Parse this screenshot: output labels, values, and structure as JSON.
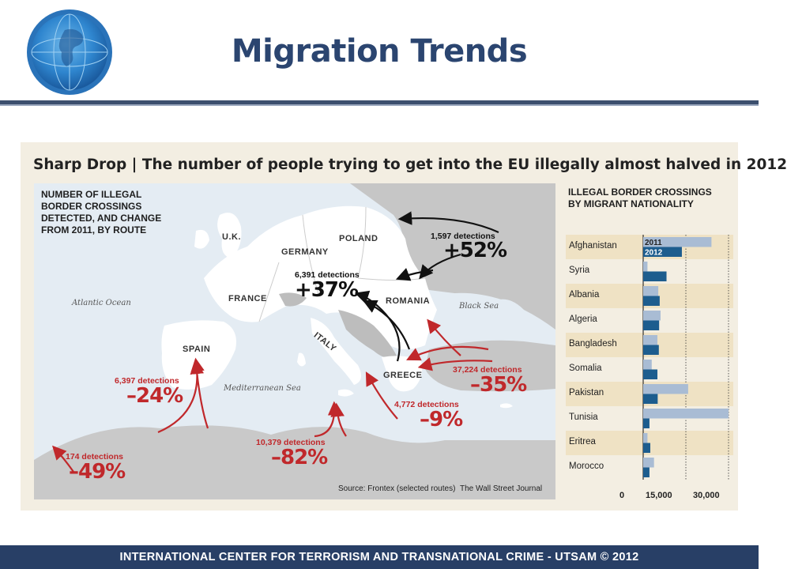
{
  "slide": {
    "title": "Migration Trends",
    "footer": "INTERNATIONAL CENTER FOR TERRORISM AND TRANSNATIONAL CRIME - UTSAM © 2012"
  },
  "figure": {
    "title": "Sharp Drop | The number of people trying to get into the EU illegally almost halved in 2012",
    "map_heading": "NUMBER OF ILLEGAL BORDER CROSSINGS DETECTED, AND CHANGE FROM 2011, BY ROUTE",
    "source": "Source: Frontex (selected routes)",
    "publisher": "The Wall Street Journal",
    "seas": {
      "atlantic": "Atlantic Ocean",
      "mediterranean": "Mediterranean Sea",
      "black": "Black Sea"
    },
    "countries": {
      "uk": "U.K.",
      "germany": "GERMANY",
      "poland": "POLAND",
      "france": "FRANCE",
      "romania": "ROMANIA",
      "spain": "SPAIN",
      "italy": "ITALY",
      "greece": "GREECE"
    },
    "routes": [
      {
        "detections": "1,597 detections",
        "change": "+52%"
      },
      {
        "detections": "6,391 detections",
        "change": "+37%"
      },
      {
        "detections": "37,224 detections",
        "change": "–35%"
      },
      {
        "detections": "6,397 detections",
        "change": "–24%"
      },
      {
        "detections": "4,772 detections",
        "change": "–9%"
      },
      {
        "detections": "10,379 detections",
        "change": "–82%"
      },
      {
        "detections": "174 detections",
        "change": "–49%"
      }
    ]
  },
  "chart_data": {
    "type": "bar",
    "orientation": "horizontal",
    "title": "ILLEGAL BORDER CROSSINGS BY MIGRANT NATIONALITY",
    "categories": [
      "Afghanistan",
      "Syria",
      "Albania",
      "Algeria",
      "Bangladesh",
      "Somalia",
      "Pakistan",
      "Tunisia",
      "Eritrea",
      "Morocco"
    ],
    "series": [
      {
        "name": "2011",
        "color": "#a9bcd4",
        "values": [
          24000,
          1500,
          5300,
          6100,
          5000,
          3000,
          15800,
          30000,
          1500,
          3800
        ]
      },
      {
        "name": "2012",
        "color": "#1d5d8e",
        "values": [
          13600,
          8200,
          5800,
          5600,
          5500,
          5000,
          5100,
          2200,
          2500,
          2200
        ]
      }
    ],
    "xlim": [
      0,
      30000
    ],
    "xticks": [
      "0",
      "15,000",
      "30,000"
    ],
    "legend": "top-left inside plot",
    "colors": {
      "row_band": "#efe2c4",
      "gridline": "#333333"
    }
  }
}
